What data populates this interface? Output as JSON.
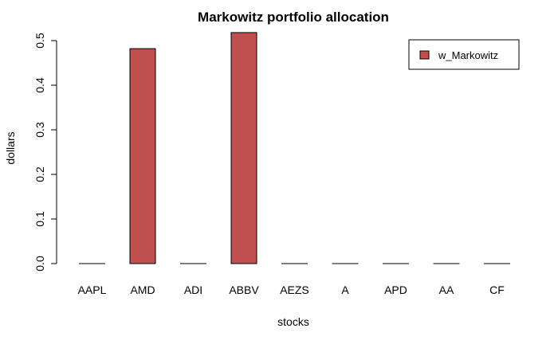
{
  "chart_data": {
    "type": "bar",
    "title": "Markowitz portfolio allocation",
    "xlabel": "stocks",
    "ylabel": "dollars",
    "categories": [
      "AAPL",
      "AMD",
      "ADI",
      "ABBV",
      "AEZS",
      "A",
      "APD",
      "AA",
      "CF"
    ],
    "series": [
      {
        "name": "w_Markowitz",
        "values": [
          0.0,
          0.482,
          0.0,
          0.518,
          0.0,
          0.0,
          0.0,
          0.0,
          0.0
        ]
      }
    ],
    "ylim": [
      0,
      0.5
    ],
    "yticks": [
      0.0,
      0.1,
      0.2,
      0.3,
      0.4,
      0.5
    ],
    "ytick_labels": [
      "0.0",
      "0.1",
      "0.2",
      "0.3",
      "0.4",
      "0.5"
    ],
    "legend_position": "top-right",
    "grid": false,
    "colors": {
      "bar_fill": "#C0504D",
      "bar_stroke": "#000000"
    }
  }
}
